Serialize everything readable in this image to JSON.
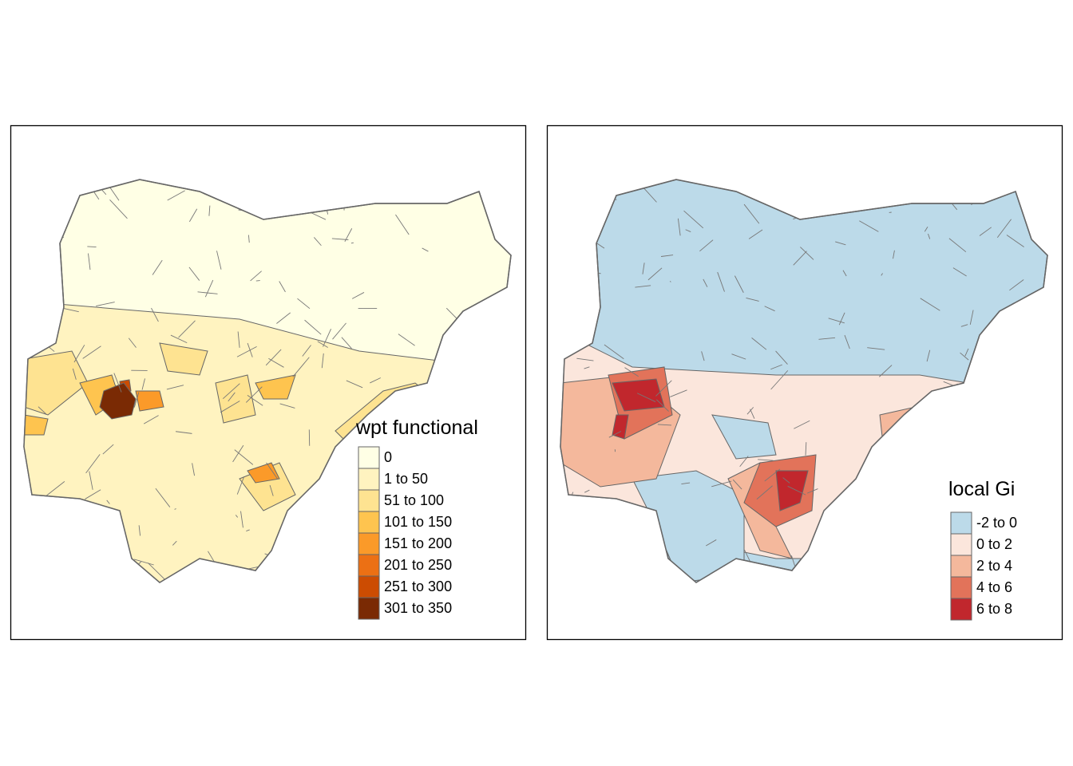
{
  "panels": [
    {
      "legend": {
        "title": "wpt functional",
        "items": [
          {
            "label": "0",
            "color": "#ffffe5"
          },
          {
            "label": "1 to 50",
            "color": "#fff3c0"
          },
          {
            "label": "51 to 100",
            "color": "#fee391"
          },
          {
            "label": "101 to 150",
            "color": "#fec44f"
          },
          {
            "label": "151 to 200",
            "color": "#fb9a29"
          },
          {
            "label": "201 to 250",
            "color": "#ec7014"
          },
          {
            "label": "251 to 300",
            "color": "#cc4c02"
          },
          {
            "label": "301 to 350",
            "color": "#7a2a04"
          }
        ]
      }
    },
    {
      "legend": {
        "title": "local Gi",
        "items": [
          {
            "label": "-2 to 0",
            "color": "#bcdae9"
          },
          {
            "label": "0 to 2",
            "color": "#fbe6dc"
          },
          {
            "label": "2 to 4",
            "color": "#f4b89c"
          },
          {
            "label": "4 to 6",
            "color": "#e2735a"
          },
          {
            "label": "6 to 8",
            "color": "#c1272d"
          }
        ]
      }
    }
  ]
}
